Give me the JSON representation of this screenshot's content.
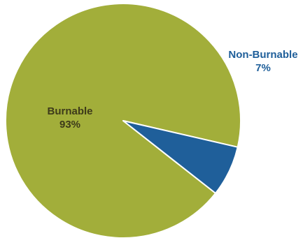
{
  "chart_data": {
    "type": "pie",
    "slices": [
      {
        "label": "Burnable",
        "value": 93,
        "value_label": "93%",
        "color": "#a2ae3a"
      },
      {
        "label": "Non-Burnable",
        "value": 7,
        "value_label": "7%",
        "color": "#1f5f9a"
      }
    ],
    "label_colors": {
      "Burnable": "#3d3a1a",
      "Non-Burnable": "#1f5f9a"
    }
  }
}
